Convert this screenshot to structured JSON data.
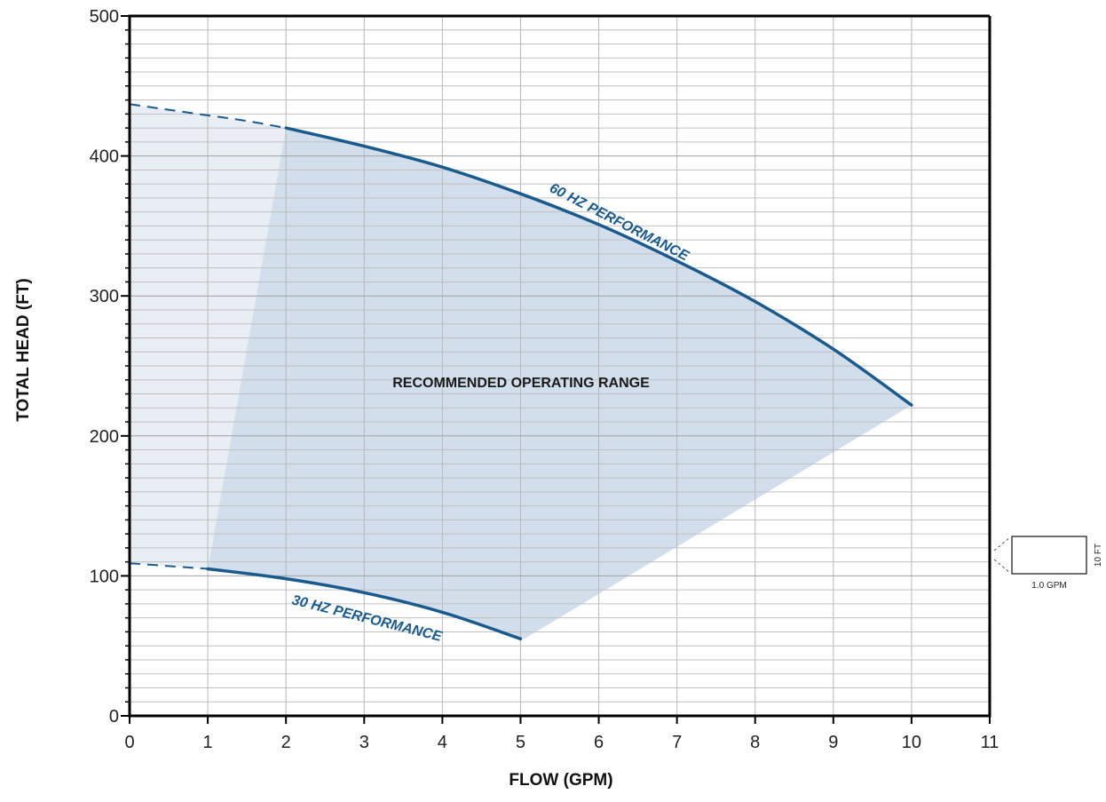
{
  "chart_data": {
    "type": "line",
    "xlabel": "FLOW (GPM)",
    "ylabel": "TOTAL HEAD (FT)",
    "xlim": [
      0,
      11
    ],
    "ylim": [
      0,
      500
    ],
    "x_ticks": [
      "0",
      "1",
      "2",
      "3",
      "4",
      "5",
      "6",
      "7",
      "8",
      "9",
      "10",
      "11"
    ],
    "y_ticks": [
      "0",
      "100",
      "200",
      "300",
      "400",
      "500"
    ],
    "grid": true,
    "series": [
      {
        "name": "60 HZ PERFORMANCE",
        "color": "#1a5a8c",
        "dashed_x": [
          0,
          0.5,
          1,
          1.5,
          2
        ],
        "dashed_y": [
          437,
          433,
          429,
          425,
          420
        ],
        "x": [
          2,
          3,
          4,
          5,
          6,
          7,
          8,
          9,
          10
        ],
        "y": [
          420,
          407,
          392,
          373,
          351,
          325,
          296,
          262,
          222
        ]
      },
      {
        "name": "30 HZ PERFORMANCE",
        "color": "#1a5a8c",
        "dashed_x": [
          0,
          0.5,
          1
        ],
        "dashed_y": [
          109,
          107,
          105
        ],
        "x": [
          1,
          2,
          3,
          4,
          5
        ],
        "y": [
          105,
          98,
          88,
          74,
          55
        ]
      }
    ],
    "regions": [
      {
        "label": "RECOMMENDED OPERATING RANGE",
        "color": "#d3deec",
        "polygon": [
          [
            2,
            420
          ],
          [
            3,
            407
          ],
          [
            4,
            392
          ],
          [
            5,
            373
          ],
          [
            6,
            351
          ],
          [
            7,
            325
          ],
          [
            8,
            296
          ],
          [
            9,
            262
          ],
          [
            10,
            222
          ],
          [
            5.05,
            55
          ],
          [
            4,
            74
          ],
          [
            3,
            88
          ],
          [
            2,
            98
          ],
          [
            1,
            105
          ]
        ]
      },
      {
        "label": "",
        "color": "#e9eef5",
        "polygon": [
          [
            0,
            437
          ],
          [
            0.5,
            433
          ],
          [
            1,
            429
          ],
          [
            1.5,
            425
          ],
          [
            2,
            420
          ],
          [
            1,
            105
          ],
          [
            0.5,
            107
          ],
          [
            0,
            109
          ]
        ]
      }
    ],
    "annotations": {
      "range_label": "RECOMMENDED OPERATING RANGE",
      "hz60_label": "60 HZ PERFORMANCE",
      "hz30_label": "30 HZ PERFORMANCE"
    },
    "scale_legend": {
      "height_label": "10 FT",
      "width_label": "1.0 GPM"
    }
  }
}
